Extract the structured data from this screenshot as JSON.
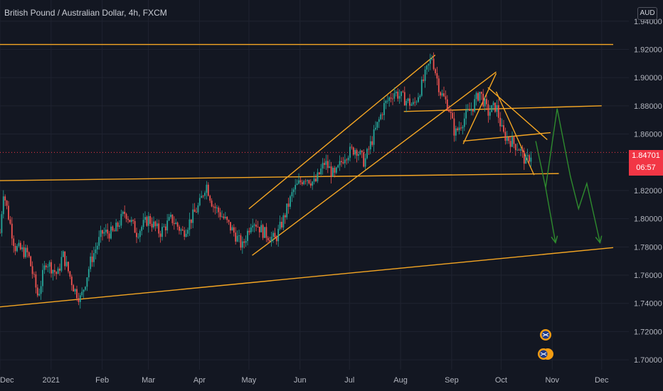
{
  "header": {
    "symbol_title": "British Pound / Australian Dollar, 4h, FXCM",
    "currency_badge": "AUD"
  },
  "price_tag": {
    "price": "1.84701",
    "countdown": "06:57"
  },
  "colors": {
    "background": "#131722",
    "grid": "#1f2330",
    "up_candle": "#26a69a",
    "down_candle": "#ef5350",
    "trendline": "#f5a623",
    "forecast_arrow": "#2e8b2e",
    "price_line": "#f23645"
  },
  "chart_data": {
    "type": "candlestick",
    "title": "British Pound / Australian Dollar, 4h, FXCM",
    "y_axis": {
      "ticks": [
        "1.94000",
        "1.92000",
        "1.90000",
        "1.88000",
        "1.86000",
        "1.84000",
        "1.82000",
        "1.80000",
        "1.78000",
        "1.76000",
        "1.74000",
        "1.72000",
        "1.70000"
      ],
      "range": [
        1.693,
        1.955
      ]
    },
    "x_axis": {
      "ticks": [
        "Dec",
        "2021",
        "Feb",
        "Mar",
        "Apr",
        "May",
        "Jun",
        "Jul",
        "Aug",
        "Sep",
        "Oct",
        "Nov",
        "Dec"
      ],
      "range": [
        "2020-12-01",
        "2021-12-08"
      ]
    },
    "current_price": 1.84701,
    "price_path": [
      [
        "2020-12-01",
        1.79
      ],
      [
        "2020-12-03",
        1.82
      ],
      [
        "2020-12-10",
        1.78
      ],
      [
        "2020-12-18",
        1.775
      ],
      [
        "2020-12-24",
        1.745
      ],
      [
        "2020-12-29",
        1.77
      ],
      [
        "2021-01-05",
        1.76
      ],
      [
        "2021-01-08",
        1.775
      ],
      [
        "2021-01-15",
        1.75
      ],
      [
        "2021-01-19",
        1.743
      ],
      [
        "2021-01-25",
        1.77
      ],
      [
        "2021-02-01",
        1.79
      ],
      [
        "2021-02-08",
        1.79
      ],
      [
        "2021-02-15",
        1.805
      ],
      [
        "2021-02-22",
        1.79
      ],
      [
        "2021-03-01",
        1.8
      ],
      [
        "2021-03-08",
        1.79
      ],
      [
        "2021-03-15",
        1.8
      ],
      [
        "2021-03-22",
        1.79
      ],
      [
        "2021-04-01",
        1.81
      ],
      [
        "2021-04-05",
        1.825
      ],
      [
        "2021-04-09",
        1.81
      ],
      [
        "2021-04-16",
        1.8
      ],
      [
        "2021-04-22",
        1.79
      ],
      [
        "2021-04-27",
        1.78
      ],
      [
        "2021-05-03",
        1.8
      ],
      [
        "2021-05-10",
        1.79
      ],
      [
        "2021-05-17",
        1.785
      ],
      [
        "2021-05-22",
        1.8
      ],
      [
        "2021-05-28",
        1.82
      ],
      [
        "2021-06-04",
        1.83
      ],
      [
        "2021-06-10",
        1.825
      ],
      [
        "2021-06-16",
        1.84
      ],
      [
        "2021-06-22",
        1.83
      ],
      [
        "2021-06-28",
        1.845
      ],
      [
        "2021-07-05",
        1.85
      ],
      [
        "2021-07-10",
        1.84
      ],
      [
        "2021-07-16",
        1.86
      ],
      [
        "2021-07-22",
        1.88
      ],
      [
        "2021-07-28",
        1.89
      ],
      [
        "2021-08-03",
        1.885
      ],
      [
        "2021-08-09",
        1.88
      ],
      [
        "2021-08-14",
        1.895
      ],
      [
        "2021-08-20",
        1.915
      ],
      [
        "2021-08-25",
        1.89
      ],
      [
        "2021-08-30",
        1.88
      ],
      [
        "2021-09-03",
        1.86
      ],
      [
        "2021-09-08",
        1.87
      ],
      [
        "2021-09-14",
        1.88
      ],
      [
        "2021-09-18",
        1.89
      ],
      [
        "2021-09-23",
        1.875
      ],
      [
        "2021-09-28",
        1.88
      ],
      [
        "2021-10-02",
        1.86
      ],
      [
        "2021-10-07",
        1.855
      ],
      [
        "2021-10-12",
        1.85
      ],
      [
        "2021-10-16",
        1.84
      ],
      [
        "2021-10-20",
        1.847
      ]
    ],
    "trendlines": [
      {
        "from": [
          "2020-12-01",
          1.9235
        ],
        "to": [
          "2021-12-08",
          1.9235
        ]
      },
      {
        "from": [
          "2020-12-01",
          1.827
        ],
        "to": [
          "2021-11-05",
          1.832
        ]
      },
      {
        "from": [
          "2020-12-01",
          1.7375
        ],
        "to": [
          "2021-12-08",
          1.7795
        ]
      },
      {
        "from": [
          "2021-05-01",
          1.807
        ],
        "to": [
          "2021-08-22",
          1.916
        ]
      },
      {
        "from": [
          "2021-05-03",
          1.774
        ],
        "to": [
          "2021-09-28",
          1.904
        ]
      },
      {
        "from": [
          "2021-08-03",
          1.876
        ],
        "to": [
          "2021-12-01",
          1.88
        ]
      },
      {
        "from": [
          "2021-09-08",
          1.853
        ],
        "to": [
          "2021-09-28",
          1.903
        ]
      },
      {
        "from": [
          "2021-09-08",
          1.855
        ],
        "to": [
          "2021-10-31",
          1.861
        ]
      },
      {
        "from": [
          "2021-09-23",
          1.893
        ],
        "to": [
          "2021-10-29",
          1.856
        ]
      },
      {
        "from": [
          "2021-09-28",
          1.89
        ],
        "to": [
          "2021-10-21",
          1.831
        ]
      }
    ],
    "forecast": [
      [
        "2021-10-22",
        1.855
      ],
      [
        "2021-10-28",
        1.822
      ],
      [
        "2021-11-04",
        1.878
      ],
      [
        "2021-11-12",
        1.83
      ],
      [
        "2021-11-17",
        1.807
      ],
      [
        "2021-11-22",
        1.825
      ],
      [
        "2021-11-30",
        1.783
      ]
    ],
    "forecast_branch": [
      [
        "2021-10-28",
        1.822
      ],
      [
        "2021-11-03",
        1.783
      ]
    ]
  }
}
